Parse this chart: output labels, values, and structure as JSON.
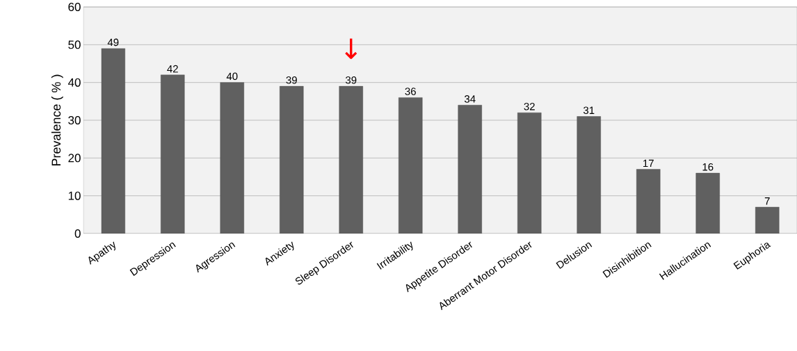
{
  "chart_data": {
    "type": "bar",
    "ylabel": "Prevalence ( % )",
    "categories": [
      "Apathy",
      "Depression",
      "Agression",
      "Anxiety",
      "Sleep Disorder",
      "Irritability",
      "Appetite Disorder",
      "Aberrant Motor Disorder",
      "Delusion",
      "Disinhibition",
      "Hallucination",
      "Euphoria"
    ],
    "values": [
      49,
      42,
      40,
      39,
      39,
      36,
      34,
      32,
      31,
      17,
      16,
      7
    ],
    "color": "#606060",
    "ylim": [
      0,
      60
    ],
    "yticks": [
      0,
      10,
      20,
      30,
      40,
      50,
      60
    ],
    "grid": "y",
    "data_labels": true,
    "annotations": [
      "↓"
    ]
  }
}
